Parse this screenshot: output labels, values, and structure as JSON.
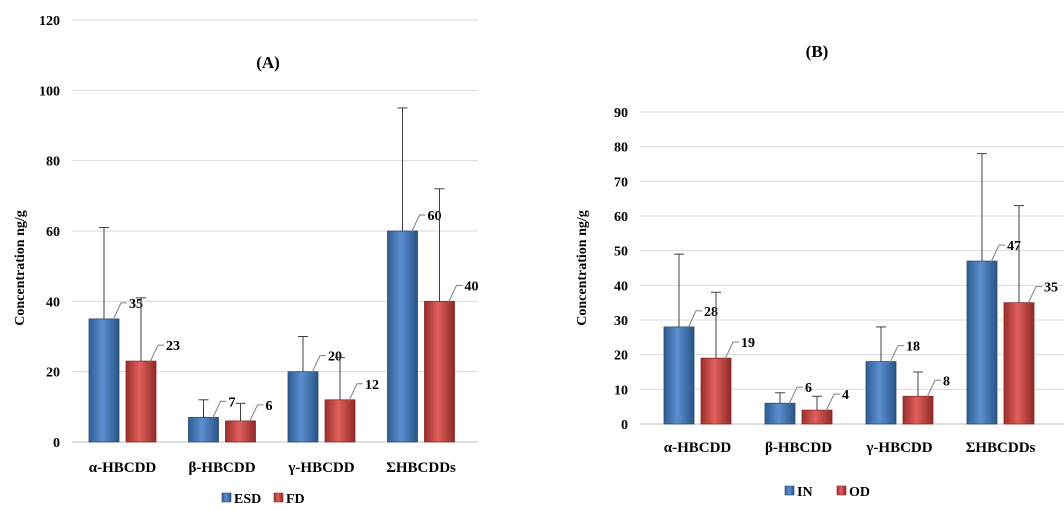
{
  "chart_data": [
    {
      "type": "bar",
      "title": "(A)",
      "ylabel": "Concentration ng/g",
      "xlabel": "",
      "ylim": [
        0,
        120
      ],
      "yticks": [
        0,
        20,
        40,
        60,
        80,
        100,
        120
      ],
      "grid": true,
      "legend_position": "bottom",
      "categories": [
        "α-HBCDD",
        "β-HBCDD",
        "γ-HBCDD",
        "ΣHBCDDs"
      ],
      "series": [
        {
          "name": "ESD",
          "color": "#4f81bd",
          "values": [
            35,
            7,
            20,
            60
          ],
          "labels": [
            "35",
            "7",
            "20",
            "60"
          ],
          "error_upper": [
            61,
            12,
            30,
            95
          ]
        },
        {
          "name": "FD",
          "color": "#c0504d",
          "values": [
            23,
            6,
            12,
            40
          ],
          "labels": [
            "23",
            "6",
            "12",
            "40"
          ],
          "error_upper": [
            41,
            11,
            24,
            72
          ]
        }
      ]
    },
    {
      "type": "bar",
      "title": "(B)",
      "ylabel": "Concentration ng/g",
      "xlabel": "",
      "ylim": [
        0,
        90
      ],
      "yticks": [
        0,
        10,
        20,
        30,
        40,
        50,
        60,
        70,
        80,
        90
      ],
      "grid": true,
      "legend_position": "bottom",
      "categories": [
        "α-HBCDD",
        "β-HBCDD",
        "γ-HBCDD",
        "ΣHBCDDs"
      ],
      "series": [
        {
          "name": "IN",
          "color": "#4f81bd",
          "values": [
            28,
            6,
            18,
            47
          ],
          "labels": [
            "28",
            "6",
            "18",
            "47"
          ],
          "error_upper": [
            49,
            9,
            28,
            78
          ]
        },
        {
          "name": "OD",
          "color": "#c0504d",
          "values": [
            19,
            4,
            8,
            35
          ],
          "labels": [
            "19",
            "4",
            "8",
            "35"
          ],
          "error_upper": [
            38,
            8,
            15,
            63
          ]
        }
      ]
    }
  ]
}
